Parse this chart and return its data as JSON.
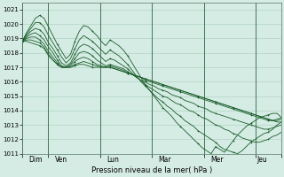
{
  "xlabel": "Pression niveau de la mer( hPa )",
  "ylim": [
    1011,
    1021.5
  ],
  "yticks": [
    1011,
    1012,
    1013,
    1014,
    1015,
    1016,
    1017,
    1018,
    1019,
    1020,
    1021
  ],
  "background_color": "#d5ece4",
  "grid_color": "#a8ccbc",
  "line_color": "#1a5c2a",
  "x_tick_labels": [
    "Dim",
    "Ven",
    "Lun",
    "Mar",
    "Mer",
    "Jeu"
  ],
  "x_tick_positions": [
    12,
    36,
    84,
    132,
    180,
    222
  ],
  "x_vline_positions": [
    0,
    24,
    72,
    120,
    168,
    216,
    240
  ],
  "total_hours": 240,
  "series": [
    [
      1018.8,
      1018.8,
      1018.7,
      1018.6,
      1018.5,
      1018.3,
      1017.8,
      1017.5,
      1017.2,
      1017.0,
      1017.0,
      1017.0,
      1017.1,
      1017.2,
      1017.2,
      1017.1,
      1017.0,
      1017.0,
      1017.0,
      1017.0,
      1017.0,
      1016.9,
      1016.8,
      1016.7,
      1016.6,
      1016.5,
      1016.4,
      1016.3,
      1016.2,
      1016.1,
      1016.0,
      1015.9,
      1015.8,
      1015.7,
      1015.6,
      1015.5,
      1015.4,
      1015.3,
      1015.2,
      1015.1,
      1015.0,
      1014.9,
      1014.8,
      1014.7,
      1014.6,
      1014.5,
      1014.4,
      1014.3,
      1014.2,
      1014.1,
      1014.0,
      1013.9,
      1013.8,
      1013.7,
      1013.6,
      1013.5,
      1013.4,
      1013.3,
      1013.2,
      1013.2
    ],
    [
      1018.8,
      1018.9,
      1018.9,
      1018.8,
      1018.7,
      1018.4,
      1017.9,
      1017.5,
      1017.2,
      1017.0,
      1017.0,
      1017.0,
      1017.2,
      1017.3,
      1017.4,
      1017.3,
      1017.2,
      1017.1,
      1017.0,
      1017.0,
      1017.0,
      1016.9,
      1016.8,
      1016.7,
      1016.6,
      1016.5,
      1016.4,
      1016.3,
      1016.2,
      1016.1,
      1016.0,
      1015.9,
      1015.8,
      1015.7,
      1015.6,
      1015.5,
      1015.4,
      1015.3,
      1015.2,
      1015.1,
      1015.0,
      1014.9,
      1014.8,
      1014.7,
      1014.6,
      1014.5,
      1014.4,
      1014.3,
      1014.2,
      1014.1,
      1014.0,
      1013.9,
      1013.8,
      1013.7,
      1013.6,
      1013.5,
      1013.4,
      1013.3,
      1013.3,
      1013.4
    ],
    [
      1018.8,
      1019.0,
      1019.1,
      1019.1,
      1018.9,
      1018.6,
      1018.1,
      1017.7,
      1017.3,
      1017.0,
      1017.0,
      1017.1,
      1017.4,
      1017.6,
      1017.7,
      1017.6,
      1017.4,
      1017.2,
      1017.1,
      1017.0,
      1017.1,
      1017.0,
      1016.9,
      1016.8,
      1016.6,
      1016.5,
      1016.4,
      1016.3,
      1016.1,
      1016.0,
      1015.9,
      1015.8,
      1015.7,
      1015.6,
      1015.5,
      1015.4,
      1015.3,
      1015.2,
      1015.1,
      1015.0,
      1014.9,
      1014.8,
      1014.7,
      1014.6,
      1014.5,
      1014.4,
      1014.3,
      1014.2,
      1014.1,
      1014.0,
      1013.9,
      1013.8,
      1013.7,
      1013.6,
      1013.5,
      1013.4,
      1013.3,
      1013.3,
      1013.4,
      1013.5
    ],
    [
      1018.8,
      1019.1,
      1019.3,
      1019.4,
      1019.2,
      1018.9,
      1018.4,
      1018.0,
      1017.5,
      1017.1,
      1017.0,
      1017.2,
      1017.6,
      1018.0,
      1018.1,
      1018.0,
      1017.8,
      1017.5,
      1017.3,
      1017.1,
      1017.2,
      1017.1,
      1017.0,
      1016.9,
      1016.7,
      1016.5,
      1016.3,
      1016.1,
      1016.0,
      1015.8,
      1015.7,
      1015.5,
      1015.4,
      1015.3,
      1015.1,
      1015.0,
      1014.9,
      1014.7,
      1014.6,
      1014.5,
      1014.3,
      1014.2,
      1014.1,
      1013.9,
      1013.8,
      1013.7,
      1013.6,
      1013.5,
      1013.4,
      1013.3,
      1013.2,
      1013.1,
      1013.0,
      1012.9,
      1012.8,
      1012.7,
      1012.7,
      1012.8,
      1012.9,
      1013.0
    ],
    [
      1018.8,
      1019.2,
      1019.5,
      1019.7,
      1019.6,
      1019.3,
      1018.7,
      1018.3,
      1017.8,
      1017.3,
      1017.1,
      1017.3,
      1017.9,
      1018.4,
      1018.6,
      1018.5,
      1018.3,
      1018.0,
      1017.7,
      1017.4,
      1017.6,
      1017.5,
      1017.3,
      1017.1,
      1016.9,
      1016.6,
      1016.3,
      1016.1,
      1015.8,
      1015.6,
      1015.4,
      1015.2,
      1015.0,
      1014.9,
      1014.7,
      1014.5,
      1014.4,
      1014.2,
      1014.0,
      1013.9,
      1013.7,
      1013.5,
      1013.4,
      1013.2,
      1013.0,
      1012.9,
      1012.7,
      1012.6,
      1012.4,
      1012.3,
      1012.1,
      1012.0,
      1011.9,
      1011.8,
      1011.8,
      1011.9,
      1012.0,
      1012.2,
      1012.3,
      1012.5
    ],
    [
      1018.8,
      1019.3,
      1019.7,
      1020.1,
      1020.1,
      1019.8,
      1019.2,
      1018.7,
      1018.2,
      1017.7,
      1017.3,
      1017.6,
      1018.3,
      1018.9,
      1019.2,
      1019.0,
      1018.8,
      1018.5,
      1018.2,
      1017.9,
      1018.2,
      1018.0,
      1017.8,
      1017.5,
      1017.2,
      1016.8,
      1016.4,
      1016.0,
      1015.7,
      1015.4,
      1015.1,
      1014.8,
      1014.6,
      1014.3,
      1014.1,
      1013.8,
      1013.6,
      1013.3,
      1013.1,
      1012.9,
      1012.6,
      1012.4,
      1012.2,
      1012.0,
      1011.8,
      1011.5,
      1011.3,
      1011.2,
      1011.1,
      1011.0,
      1011.2,
      1011.5,
      1011.8,
      1012.0,
      1012.2,
      1012.4,
      1012.5,
      1012.7,
      1013.0,
      1013.2
    ],
    [
      1018.8,
      1019.4,
      1019.9,
      1020.4,
      1020.6,
      1020.4,
      1019.8,
      1019.2,
      1018.6,
      1018.1,
      1017.6,
      1017.9,
      1018.8,
      1019.5,
      1019.9,
      1019.8,
      1019.5,
      1019.2,
      1018.8,
      1018.5,
      1018.9,
      1018.7,
      1018.5,
      1018.2,
      1017.8,
      1017.3,
      1016.8,
      1016.3,
      1015.8,
      1015.4,
      1015.0,
      1014.6,
      1014.2,
      1013.9,
      1013.6,
      1013.2,
      1012.9,
      1012.6,
      1012.3,
      1012.0,
      1011.7,
      1011.4,
      1011.2,
      1011.0,
      1011.5,
      1011.3,
      1011.1,
      1011.5,
      1011.9,
      1012.3,
      1012.6,
      1012.9,
      1013.1,
      1013.3,
      1013.5,
      1013.6,
      1013.7,
      1013.8,
      1013.8,
      1013.5
    ]
  ]
}
